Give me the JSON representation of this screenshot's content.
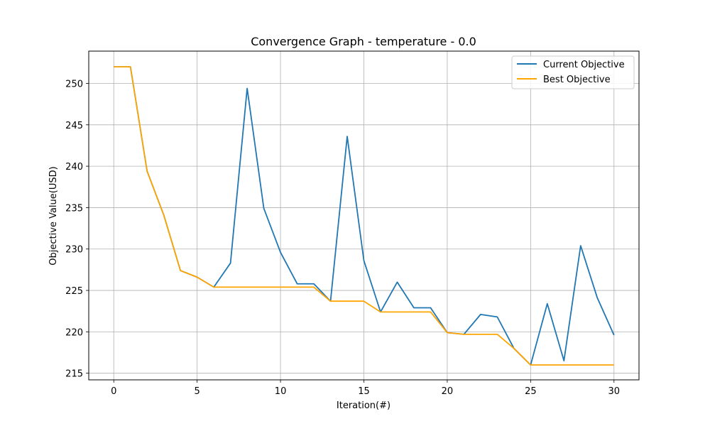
{
  "chart_data": {
    "type": "line",
    "title": "Convergence Graph - temperature - 0.0",
    "xlabel": "Iteration(#)",
    "ylabel": "Objective Value(USD)",
    "xlim": [
      -1.5,
      31.5
    ],
    "ylim": [
      214.2,
      253.9
    ],
    "xticks": [
      0,
      5,
      10,
      15,
      20,
      25,
      30
    ],
    "yticks": [
      215,
      220,
      225,
      230,
      235,
      240,
      245,
      250
    ],
    "grid": true,
    "legend_position": "top-right",
    "x": [
      0,
      1,
      2,
      3,
      4,
      5,
      6,
      7,
      8,
      9,
      10,
      11,
      12,
      13,
      14,
      15,
      16,
      17,
      18,
      19,
      20,
      21,
      22,
      23,
      24,
      25,
      26,
      27,
      28,
      29,
      30
    ],
    "series": [
      {
        "name": "Current Objective",
        "color": "#1f77b4",
        "values": [
          252.0,
          252.0,
          239.4,
          234.1,
          227.4,
          226.6,
          225.4,
          228.3,
          249.4,
          234.9,
          229.6,
          225.8,
          225.8,
          223.7,
          243.6,
          228.6,
          222.4,
          226.0,
          222.9,
          222.9,
          219.9,
          219.7,
          222.1,
          221.8,
          218.0,
          216.0,
          223.4,
          216.5,
          230.4,
          224.1,
          219.6
        ]
      },
      {
        "name": "Best Objective",
        "color": "#ffa500",
        "values": [
          252.0,
          252.0,
          239.4,
          234.1,
          227.4,
          226.6,
          225.4,
          225.4,
          225.4,
          225.4,
          225.4,
          225.4,
          225.4,
          223.7,
          223.7,
          223.7,
          222.4,
          222.4,
          222.4,
          222.4,
          219.9,
          219.7,
          219.7,
          219.7,
          218.0,
          216.0,
          216.0,
          216.0,
          216.0,
          216.0,
          216.0
        ]
      }
    ]
  }
}
